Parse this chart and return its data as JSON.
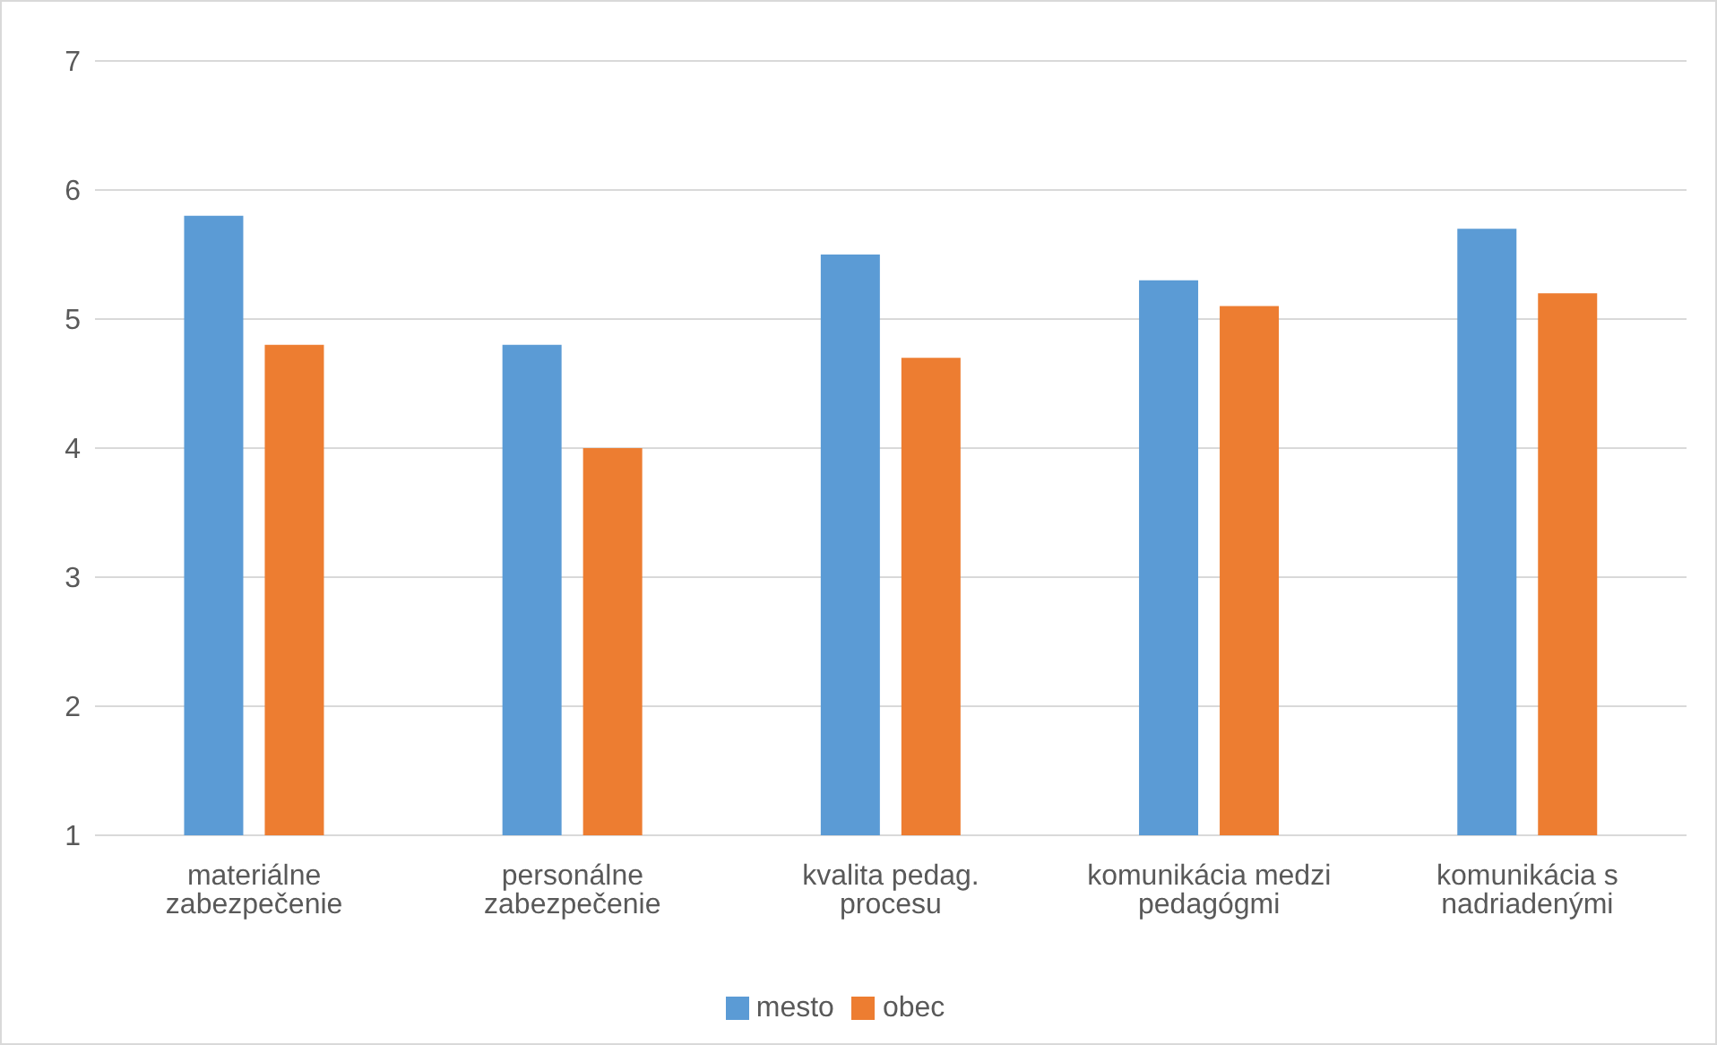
{
  "chart_data": {
    "type": "bar",
    "categories": [
      "materiálne zabezpečenie",
      "personálne zabezpečenie",
      "kvalita pedag. procesu",
      "komunikácia medzi pedagógmi",
      "komunikácia s nadriadenými"
    ],
    "series": [
      {
        "name": "mesto",
        "color": "#5b9bd5",
        "values": [
          5.8,
          4.8,
          5.5,
          5.3,
          5.7
        ]
      },
      {
        "name": "obec",
        "color": "#ed7d31",
        "values": [
          4.8,
          4.0,
          4.7,
          5.1,
          5.2
        ]
      }
    ],
    "ylim": [
      1,
      7
    ],
    "yticks": [
      1,
      2,
      3,
      4,
      5,
      6,
      7
    ],
    "grid": "y",
    "legend": "bottom"
  }
}
